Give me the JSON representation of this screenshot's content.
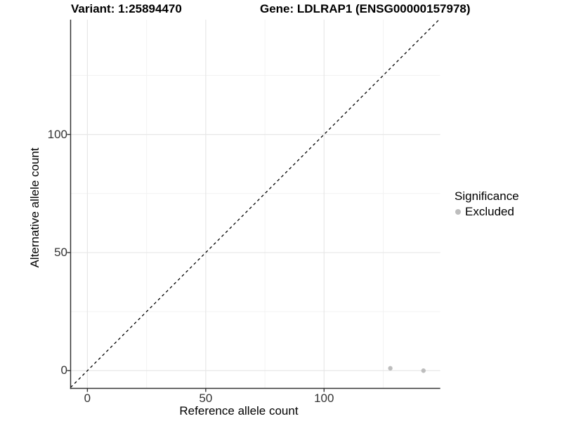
{
  "titles": {
    "variant": "Variant: 1:25894470",
    "gene": "Gene: LDLRAP1 (ENSG00000157978)"
  },
  "chart_data": {
    "type": "scatter",
    "xlabel": "Reference allele count",
    "ylabel": "Alternative allele count",
    "xlim": [
      -7.1,
      149.1
    ],
    "ylim": [
      -7.5,
      148.6
    ],
    "x_major_ticks": [
      0,
      50,
      100
    ],
    "y_major_ticks": [
      0,
      50,
      100
    ],
    "x_minor_gridlines": [
      25,
      75,
      125
    ],
    "y_minor_gridlines": [
      25,
      75,
      125
    ],
    "grid": "major+minor",
    "identity_line": {
      "slope": 1,
      "intercept": 0,
      "style": "dashed",
      "color": "#000000"
    },
    "series": [
      {
        "name": "Excluded",
        "color": "#bdbdbd",
        "points": [
          {
            "x": 128,
            "y": 1
          },
          {
            "x": 142,
            "y": 0
          }
        ]
      }
    ],
    "legend": {
      "title": "Significance",
      "position": "right",
      "entries": [
        {
          "label": "Excluded",
          "color": "#bdbdbd"
        }
      ]
    }
  },
  "colors": {
    "background": "#ffffff",
    "axis_line": "#333333",
    "tick_mark": "#333333",
    "tick_text": "#333333",
    "grid_major": "#e7e7e7",
    "grid_minor": "#f2f2f2",
    "identity_line": "#000000",
    "point": "#bdbdbd"
  }
}
